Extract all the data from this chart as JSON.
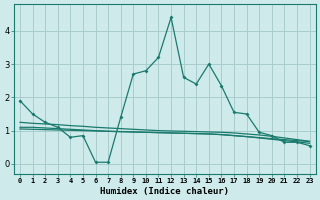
{
  "xlabel": "Humidex (Indice chaleur)",
  "x": [
    0,
    1,
    2,
    3,
    4,
    5,
    6,
    7,
    8,
    9,
    10,
    11,
    12,
    13,
    14,
    15,
    16,
    17,
    18,
    19,
    20,
    21,
    22,
    23
  ],
  "line1": [
    1.9,
    1.5,
    1.25,
    1.1,
    0.8,
    0.85,
    0.05,
    0.05,
    1.4,
    2.7,
    2.8,
    3.2,
    4.4,
    2.6,
    2.4,
    3.0,
    2.35,
    1.55,
    1.5,
    0.95,
    0.85,
    0.65,
    0.65,
    0.55
  ],
  "line2": [
    1.25,
    1.22,
    1.2,
    1.18,
    1.15,
    1.13,
    1.1,
    1.08,
    1.06,
    1.04,
    1.02,
    1.0,
    0.99,
    0.98,
    0.97,
    0.96,
    0.95,
    0.93,
    0.9,
    0.87,
    0.83,
    0.78,
    0.73,
    0.68
  ],
  "line3": [
    1.1,
    1.1,
    1.08,
    1.06,
    1.04,
    1.02,
    1.0,
    0.98,
    0.97,
    0.96,
    0.95,
    0.94,
    0.93,
    0.92,
    0.91,
    0.9,
    0.88,
    0.85,
    0.82,
    0.78,
    0.74,
    0.7,
    0.66,
    0.62
  ],
  "line4": [
    1.05,
    1.04,
    1.03,
    1.02,
    1.01,
    1.0,
    0.99,
    0.98,
    0.97,
    0.96,
    0.95,
    0.94,
    0.93,
    0.92,
    0.91,
    0.9,
    0.88,
    0.85,
    0.82,
    0.79,
    0.76,
    0.73,
    0.7,
    0.67
  ],
  "line_color": "#1a7a6e",
  "bg_color": "#ceeaea",
  "grid_color": "#a8cccc",
  "ylim": [
    -0.3,
    4.8
  ],
  "xlim": [
    -0.5,
    23.5
  ],
  "yticks": [
    0,
    1,
    2,
    3,
    4
  ],
  "xtick_labels": [
    "0",
    "1",
    "2",
    "3",
    "4",
    "5",
    "6",
    "7",
    "8",
    "9",
    "10",
    "11",
    "12",
    "13",
    "14",
    "15",
    "16",
    "17",
    "18",
    "19",
    "20",
    "21",
    "22",
    "23"
  ]
}
